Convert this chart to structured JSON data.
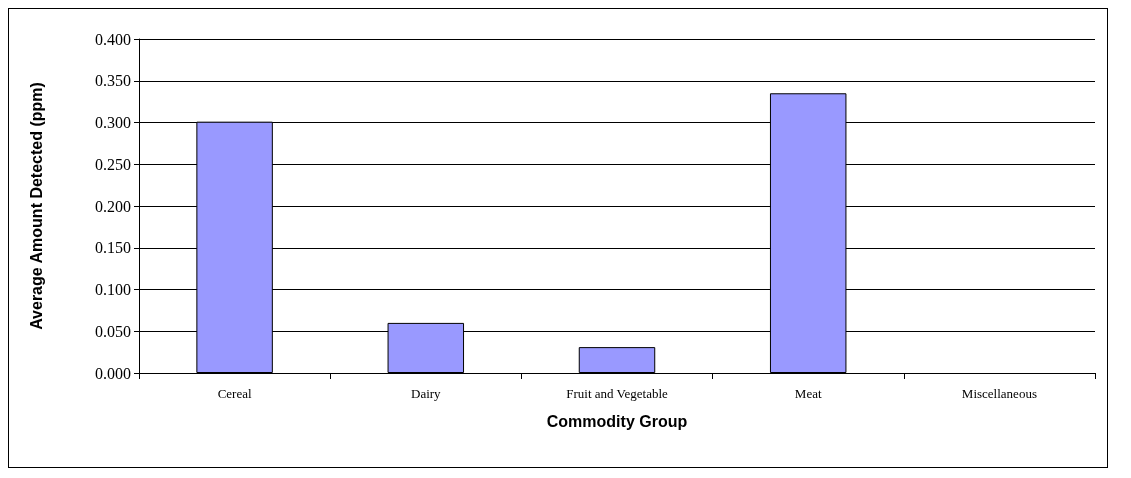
{
  "chart_data": {
    "type": "bar",
    "xlabel": "Commodity Group",
    "ylabel": "Average Amount Detected (ppm)",
    "categories": [
      "Cereal",
      "Dairy",
      "Fruit and Vegetable",
      "Meat",
      "Miscellaneous"
    ],
    "values": [
      0.301,
      0.06,
      0.031,
      0.335,
      0
    ],
    "color": "#9999ff",
    "ylim": [
      0,
      0.4
    ],
    "yticks": [
      {
        "value": 0,
        "label": "0.000"
      },
      {
        "value": 0.05,
        "label": "0.050"
      },
      {
        "value": 0.1,
        "label": "0.100"
      },
      {
        "value": 0.15,
        "label": "0.150"
      },
      {
        "value": 0.2,
        "label": "0.200"
      },
      {
        "value": 0.25,
        "label": "0.250"
      },
      {
        "value": 0.3,
        "label": "0.300"
      },
      {
        "value": 0.35,
        "label": "0.350"
      },
      {
        "value": 0.4,
        "label": "0.400"
      }
    ],
    "grid": "y"
  }
}
